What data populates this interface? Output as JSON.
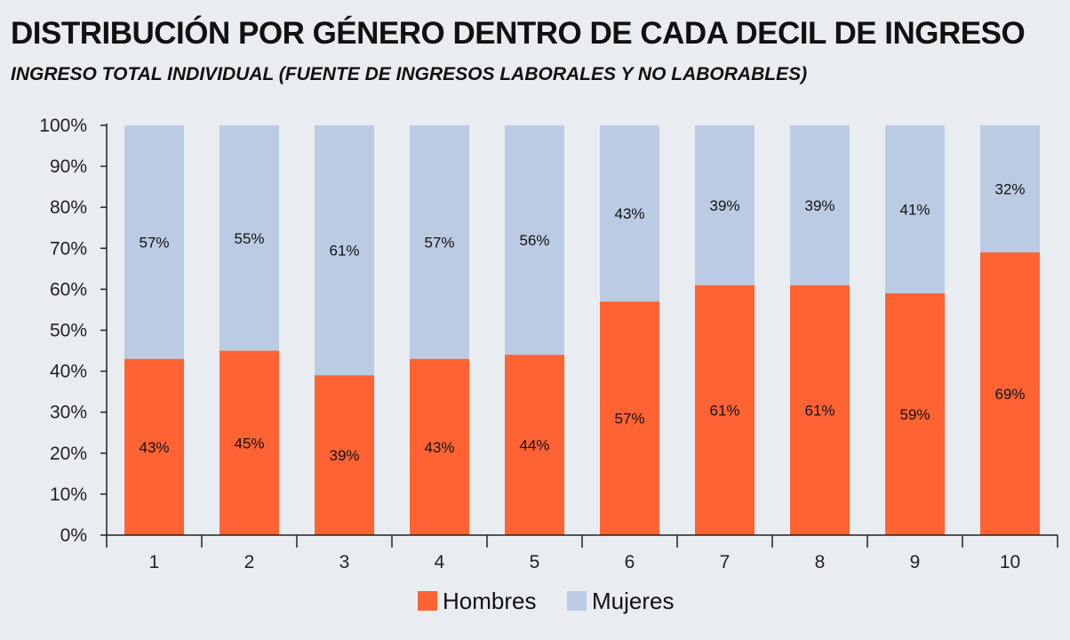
{
  "title": "DISTRIBUCIÓN POR GÉNERO DENTRO DE CADA DECIL DE INGRESO",
  "subtitle": "INGRESO TOTAL INDIVIDUAL (FUENTE DE INGRESOS LABORALES Y NO LABORABLES)",
  "colors": {
    "hombres": "#ff6333",
    "mujeres": "#bccbe4",
    "axis": "#222222",
    "background": "#e9edf1"
  },
  "chart_data": {
    "type": "bar",
    "stacked": true,
    "title": "DISTRIBUCIÓN POR GÉNERO DENTRO DE CADA DECIL DE INGRESO",
    "subtitle": "INGRESO TOTAL INDIVIDUAL (FUENTE DE INGRESOS LABORALES Y NO LABORABLES)",
    "categories": [
      "1",
      "2",
      "3",
      "4",
      "5",
      "6",
      "7",
      "8",
      "9",
      "10"
    ],
    "series": [
      {
        "name": "Hombres",
        "values": [
          43,
          45,
          39,
          43,
          44,
          57,
          61,
          61,
          59,
          69
        ],
        "labels": [
          "43%",
          "45%",
          "39%",
          "43%",
          "44%",
          "57%",
          "61%",
          "61%",
          "59%",
          "69%"
        ]
      },
      {
        "name": "Mujeres",
        "values": [
          57,
          55,
          61,
          57,
          56,
          43,
          39,
          39,
          41,
          32
        ],
        "labels": [
          "57%",
          "55%",
          "61%",
          "57%",
          "56%",
          "43%",
          "39%",
          "39%",
          "41%",
          "32%"
        ]
      }
    ],
    "ylim": [
      0,
      100
    ],
    "yticks": [
      0,
      10,
      20,
      30,
      40,
      50,
      60,
      70,
      80,
      90,
      100
    ],
    "ytick_labels": [
      "0%",
      "10%",
      "20%",
      "30%",
      "40%",
      "50%",
      "60%",
      "70%",
      "80%",
      "90%",
      "100%"
    ],
    "xlabel": "",
    "ylabel": "",
    "grid": false,
    "legend_position": "bottom-center"
  }
}
